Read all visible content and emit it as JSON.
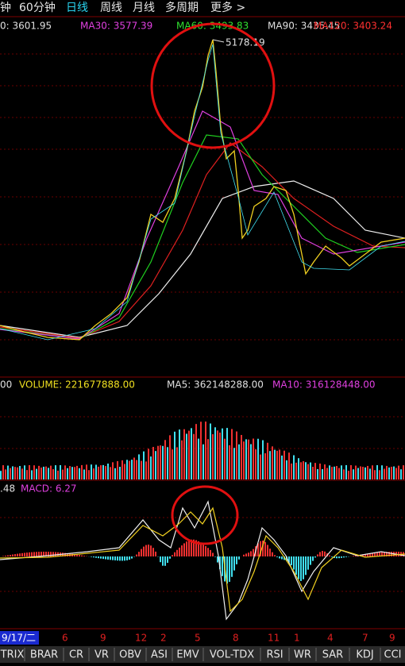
{
  "tabs": {
    "items": [
      "钟",
      "60分钟",
      "日线",
      "周线",
      "月线",
      "多周期",
      "更多 >"
    ]
  },
  "ma_legend": {
    "items": [
      "0: 3601.95",
      "MA30: 3577.39",
      "MA60: 3493.83",
      "MA90: 3435.45",
      "MA120: 3403.24"
    ]
  },
  "peak_label": "5178.19",
  "volume_legend": {
    "items": [
      "00",
      "VOLUME: 221677888.00",
      "MA5: 362148288.00",
      "MA10: 316128448.00"
    ]
  },
  "macd_legend": {
    "items": [
      ".48",
      "MACD: 6.27"
    ]
  },
  "date_axis": {
    "items": [
      "9/17/二",
      "6",
      "9",
      "12",
      "2",
      "5",
      "8",
      "11",
      "1",
      "4",
      "7",
      "9"
    ]
  },
  "indicator_tabs": {
    "items": [
      "TRIX",
      "BRAR",
      "CR",
      "VR",
      "OBV",
      "ASI",
      "EMV",
      "VOL-TDX",
      "RSI",
      "WR",
      "SAR",
      "KDJ",
      "CCI"
    ]
  }
}
